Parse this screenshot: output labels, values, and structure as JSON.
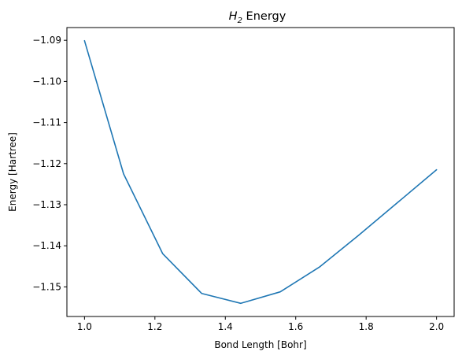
{
  "chart_data": {
    "type": "line",
    "title": {
      "base": "H",
      "subscript": "2",
      "suffix": " Energy"
    },
    "xlabel": "Bond Length [Bohr]",
    "ylabel": "Energy [Hartree]",
    "xlim": [
      0.95,
      2.05
    ],
    "ylim": [
      -1.1572,
      -1.0869
    ],
    "xticks": [
      1.0,
      1.2,
      1.4,
      1.6,
      1.8,
      2.0
    ],
    "xtick_labels": [
      "1.0",
      "1.2",
      "1.4",
      "1.6",
      "1.8",
      "2.0"
    ],
    "yticks": [
      -1.15,
      -1.14,
      -1.13,
      -1.12,
      -1.11,
      -1.1,
      -1.09
    ],
    "ytick_labels": [
      "−1.15",
      "−1.14",
      "−1.13",
      "−1.12",
      "−1.11",
      "−1.10",
      "−1.09"
    ],
    "grid": false,
    "series": [
      {
        "color": "#1f77b4",
        "x": [
          1.0,
          1.111,
          1.222,
          1.333,
          1.444,
          1.556,
          1.667,
          1.778,
          1.889,
          2.0
        ],
        "y": [
          -1.0901,
          -1.1225,
          -1.1419,
          -1.1516,
          -1.154,
          -1.1512,
          -1.1452,
          -1.1375,
          -1.1295,
          -1.1215
        ]
      }
    ]
  }
}
